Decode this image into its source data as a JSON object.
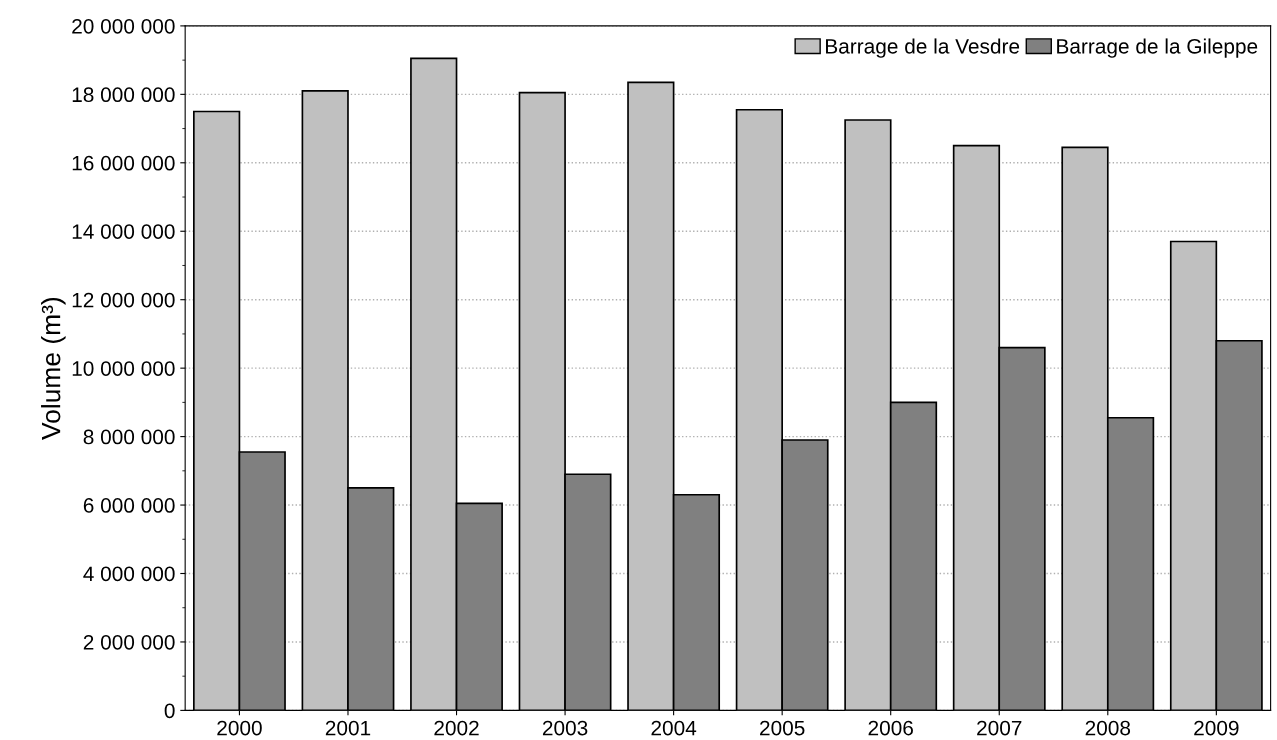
{
  "chart_data": {
    "type": "bar",
    "ylabel": "Volume (m³)",
    "categories": [
      "2000",
      "2001",
      "2002",
      "2003",
      "2004",
      "2005",
      "2006",
      "2007",
      "2008",
      "2009"
    ],
    "series": [
      {
        "name": "Barrage de la Vesdre",
        "color": "#c0c0c0",
        "values": [
          17500000,
          18100000,
          19050000,
          18050000,
          18350000,
          17550000,
          17250000,
          16500000,
          16450000,
          13700000
        ]
      },
      {
        "name": "Barrage de la Gileppe",
        "color": "#808080",
        "values": [
          7550000,
          6500000,
          6050000,
          6900000,
          6300000,
          7900000,
          9000000,
          10600000,
          8550000,
          10800000
        ]
      }
    ],
    "ylim": [
      0,
      20000000
    ],
    "yticks": [
      {
        "value": 0,
        "label": "0"
      },
      {
        "value": 2000000,
        "label": "2 000 000"
      },
      {
        "value": 4000000,
        "label": "4 000 000"
      },
      {
        "value": 6000000,
        "label": "6 000 000"
      },
      {
        "value": 8000000,
        "label": "8 000 000"
      },
      {
        "value": 10000000,
        "label": "10 000 000"
      },
      {
        "value": 12000000,
        "label": "12 000 000"
      },
      {
        "value": 14000000,
        "label": "14 000 000"
      },
      {
        "value": 16000000,
        "label": "16 000 000"
      },
      {
        "value": 18000000,
        "label": "18 000 000"
      },
      {
        "value": 20000000,
        "label": "20 000 000"
      }
    ],
    "grid": "y",
    "legend": "top right"
  }
}
